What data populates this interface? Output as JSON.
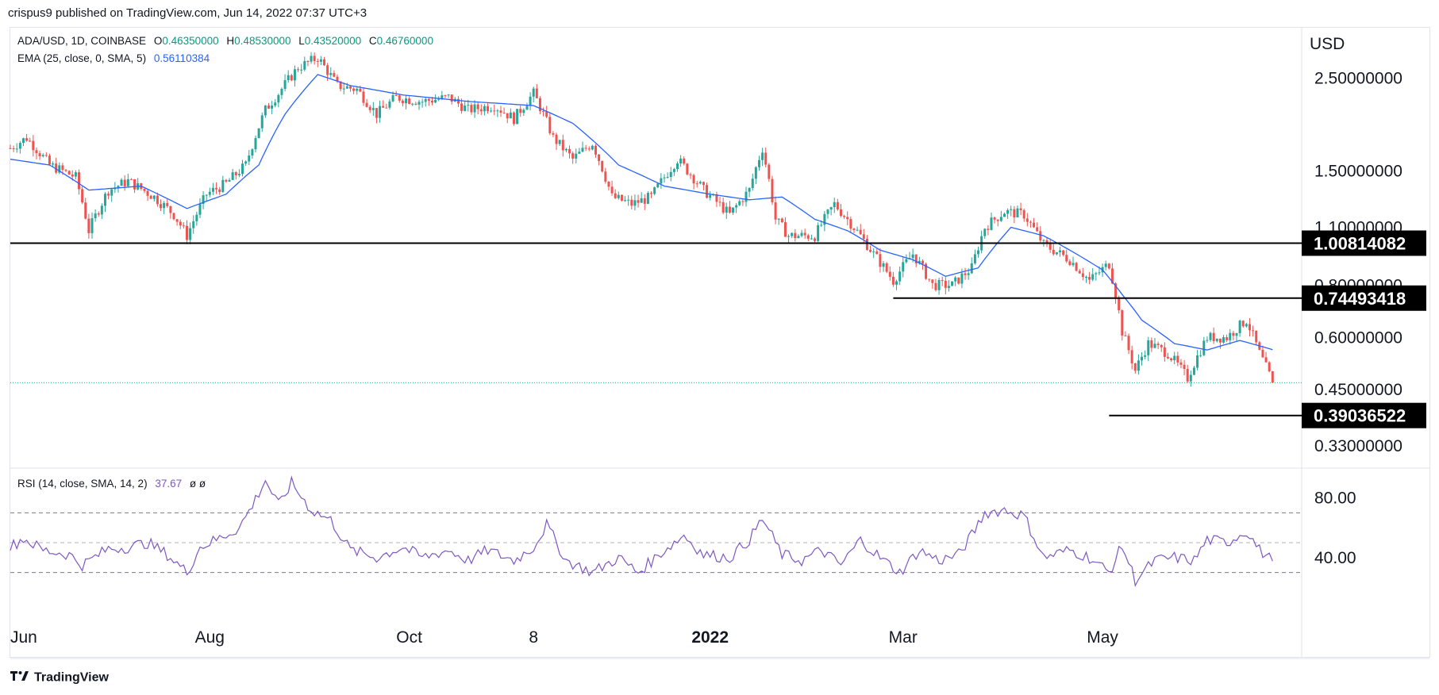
{
  "publisher": "crispus9 published on TradingView.com, Jun 14, 2022 07:37 UTC+3",
  "legend": {
    "symbol": "ADA/USD, 1D, COINBASE",
    "o_label": "O",
    "o": "0.46350000",
    "h_label": "H",
    "h": "0.48530000",
    "l_label": "L",
    "l": "0.43520000",
    "c_label": "C",
    "c": "0.46760000",
    "ema_label": "EMA (25, close, 0, SMA, 5)",
    "ema_value": "0.56110384",
    "rsi_label": "RSI (14, close, SMA, 14, 2)",
    "rsi_value": "37.67",
    "rsi_extra": "ø  ø"
  },
  "colors": {
    "up": "#26a69a",
    "down": "#ef5350",
    "ema": "#2962ff",
    "rsi": "#7e57c2",
    "level": "#000000"
  },
  "chart_data": {
    "type": "candlestick",
    "currency": "USD",
    "price_scale": "log",
    "price_ticks": [
      "2.50000000",
      "1.50000000",
      "1.10000000",
      "0.80000000",
      "0.60000000",
      "0.45000000",
      "0.33000000"
    ],
    "price_tick_values": [
      2.5,
      1.5,
      1.1,
      0.8,
      0.6,
      0.45,
      0.33
    ],
    "x_ticks": [
      "Jun",
      "Aug",
      "Oct",
      "8",
      "2022",
      "Mar",
      "May"
    ],
    "x_tick_days": [
      0,
      61,
      122,
      160,
      214,
      273,
      334
    ],
    "levels": [
      {
        "label": "1.00814082",
        "value": 1.00814082,
        "start_day": 0
      },
      {
        "label": "0.74493418",
        "value": 0.74493418,
        "start_day": 270
      },
      {
        "label": "0.39036522",
        "value": 0.39036522,
        "start_day": 336
      }
    ],
    "last_close": 0.4676,
    "close_anchors": [
      [
        0,
        1.7
      ],
      [
        5,
        1.8
      ],
      [
        12,
        1.55
      ],
      [
        20,
        1.45
      ],
      [
        24,
        1.08
      ],
      [
        30,
        1.35
      ],
      [
        36,
        1.42
      ],
      [
        44,
        1.3
      ],
      [
        50,
        1.18
      ],
      [
        54,
        1.05
      ],
      [
        60,
        1.32
      ],
      [
        66,
        1.4
      ],
      [
        72,
        1.55
      ],
      [
        78,
        2.1
      ],
      [
        82,
        2.3
      ],
      [
        88,
        2.65
      ],
      [
        94,
        2.8
      ],
      [
        100,
        2.4
      ],
      [
        106,
        2.35
      ],
      [
        112,
        2.05
      ],
      [
        118,
        2.25
      ],
      [
        126,
        2.2
      ],
      [
        134,
        2.25
      ],
      [
        140,
        2.1
      ],
      [
        148,
        2.15
      ],
      [
        154,
        2.0
      ],
      [
        160,
        2.3
      ],
      [
        166,
        1.8
      ],
      [
        172,
        1.6
      ],
      [
        178,
        1.75
      ],
      [
        184,
        1.3
      ],
      [
        190,
        1.25
      ],
      [
        196,
        1.3
      ],
      [
        204,
        1.6
      ],
      [
        212,
        1.35
      ],
      [
        220,
        1.18
      ],
      [
        226,
        1.35
      ],
      [
        230,
        1.7
      ],
      [
        234,
        1.15
      ],
      [
        238,
        1.05
      ],
      [
        246,
        1.05
      ],
      [
        252,
        1.25
      ],
      [
        258,
        1.1
      ],
      [
        264,
        0.95
      ],
      [
        270,
        0.82
      ],
      [
        276,
        0.95
      ],
      [
        282,
        0.8
      ],
      [
        288,
        0.8
      ],
      [
        294,
        0.88
      ],
      [
        298,
        1.1
      ],
      [
        304,
        1.2
      ],
      [
        310,
        1.18
      ],
      [
        316,
        1.0
      ],
      [
        324,
        0.92
      ],
      [
        330,
        0.82
      ],
      [
        336,
        0.9
      ],
      [
        340,
        0.62
      ],
      [
        344,
        0.5
      ],
      [
        348,
        0.58
      ],
      [
        354,
        0.55
      ],
      [
        360,
        0.48
      ],
      [
        366,
        0.6
      ],
      [
        372,
        0.6
      ],
      [
        378,
        0.66
      ],
      [
        382,
        0.55
      ],
      [
        386,
        0.4676
      ]
    ],
    "ema_anchors": [
      [
        0,
        1.6
      ],
      [
        12,
        1.55
      ],
      [
        24,
        1.35
      ],
      [
        40,
        1.38
      ],
      [
        54,
        1.22
      ],
      [
        66,
        1.32
      ],
      [
        76,
        1.55
      ],
      [
        84,
        2.05
      ],
      [
        94,
        2.55
      ],
      [
        104,
        2.4
      ],
      [
        120,
        2.28
      ],
      [
        140,
        2.2
      ],
      [
        160,
        2.15
      ],
      [
        172,
        1.95
      ],
      [
        186,
        1.55
      ],
      [
        200,
        1.38
      ],
      [
        214,
        1.32
      ],
      [
        226,
        1.28
      ],
      [
        236,
        1.3
      ],
      [
        246,
        1.15
      ],
      [
        256,
        1.08
      ],
      [
        266,
        0.97
      ],
      [
        276,
        0.92
      ],
      [
        286,
        0.84
      ],
      [
        296,
        0.88
      ],
      [
        306,
        1.1
      ],
      [
        316,
        1.05
      ],
      [
        326,
        0.95
      ],
      [
        334,
        0.87
      ],
      [
        340,
        0.76
      ],
      [
        346,
        0.66
      ],
      [
        356,
        0.58
      ],
      [
        366,
        0.56
      ],
      [
        376,
        0.59
      ],
      [
        386,
        0.5611
      ]
    ],
    "rsi": {
      "ticks": [
        "80.00",
        "40.00"
      ],
      "tick_values": [
        80,
        40
      ],
      "bands": [
        70,
        50,
        30
      ],
      "last": 37.67,
      "anchors": [
        [
          0,
          47
        ],
        [
          4,
          53
        ],
        [
          10,
          45
        ],
        [
          18,
          42
        ],
        [
          22,
          35
        ],
        [
          30,
          46
        ],
        [
          36,
          47
        ],
        [
          42,
          50
        ],
        [
          48,
          42
        ],
        [
          54,
          30
        ],
        [
          58,
          47
        ],
        [
          64,
          53
        ],
        [
          70,
          60
        ],
        [
          74,
          75
        ],
        [
          78,
          92
        ],
        [
          82,
          75
        ],
        [
          86,
          90
        ],
        [
          92,
          72
        ],
        [
          98,
          65
        ],
        [
          104,
          45
        ],
        [
          112,
          40
        ],
        [
          120,
          47
        ],
        [
          126,
          40
        ],
        [
          134,
          45
        ],
        [
          140,
          38
        ],
        [
          146,
          45
        ],
        [
          154,
          38
        ],
        [
          160,
          47
        ],
        [
          164,
          62
        ],
        [
          170,
          38
        ],
        [
          178,
          30
        ],
        [
          186,
          40
        ],
        [
          192,
          30
        ],
        [
          200,
          45
        ],
        [
          206,
          55
        ],
        [
          212,
          42
        ],
        [
          220,
          40
        ],
        [
          226,
          52
        ],
        [
          230,
          66
        ],
        [
          236,
          42
        ],
        [
          242,
          38
        ],
        [
          248,
          45
        ],
        [
          254,
          35
        ],
        [
          260,
          52
        ],
        [
          266,
          40
        ],
        [
          272,
          30
        ],
        [
          278,
          45
        ],
        [
          284,
          38
        ],
        [
          290,
          42
        ],
        [
          294,
          55
        ],
        [
          298,
          70
        ],
        [
          304,
          72
        ],
        [
          310,
          68
        ],
        [
          316,
          40
        ],
        [
          324,
          45
        ],
        [
          330,
          40
        ],
        [
          336,
          30
        ],
        [
          340,
          48
        ],
        [
          344,
          25
        ],
        [
          350,
          38
        ],
        [
          356,
          40
        ],
        [
          362,
          38
        ],
        [
          366,
          52
        ],
        [
          372,
          50
        ],
        [
          378,
          58
        ],
        [
          382,
          45
        ],
        [
          386,
          37.67
        ]
      ]
    }
  }
}
